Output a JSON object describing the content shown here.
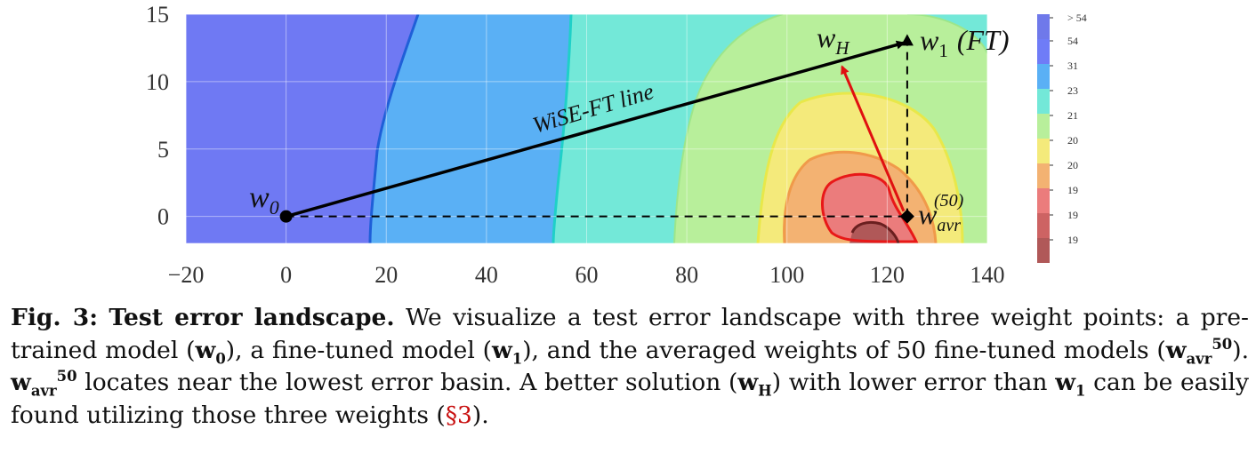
{
  "chart_data": {
    "type": "heatmap",
    "title": "",
    "xlabel": "",
    "ylabel": "",
    "xlim": [
      -20,
      140
    ],
    "ylim": [
      -2,
      15
    ],
    "xticks": [
      "−20",
      "0",
      "20",
      "40",
      "60",
      "80",
      "100",
      "120",
      "140"
    ],
    "yticks": [
      "0",
      "5",
      "10",
      "15"
    ],
    "grid": true,
    "colorbar": {
      "labels": [
        "> 54",
        "54",
        "31",
        "23",
        "21",
        "20",
        "20",
        "19",
        "19",
        "19"
      ],
      "colors": [
        "#6f79ea",
        "#6f7cf7",
        "#5ab0f5",
        "#73e8d8",
        "#b8ef9b",
        "#f4ea7b",
        "#f3b272",
        "#eb7c7c",
        "#cd6363",
        "#b05858"
      ]
    },
    "points": [
      {
        "label": "w0",
        "x": 0,
        "y": 0
      },
      {
        "label": "w1 (FT)",
        "x": 124,
        "y": 13
      },
      {
        "label": "w_avr^(50)",
        "x": 124,
        "y": 0
      },
      {
        "label": "w_H",
        "x": 111,
        "y": 11.5
      }
    ],
    "annotations": {
      "wise_line": "WiSE-FT line",
      "w0": "w",
      "w0_sub": "0",
      "w1": "w",
      "w1_sub": "1",
      "ft": "(FT)",
      "wh": "w",
      "wh_sub": "H",
      "wavr": "w",
      "wavr_sub": "avr",
      "wavr_sup": "(50)"
    }
  },
  "caption": {
    "label": "Fig. 3:",
    "heading": "Test error landscape.",
    "s1": "We visualize a test error landscape with three weight points: a pre-trained model (",
    "w0": "w",
    "w0_sub": "0",
    "s2": "), a fine-tuned model (",
    "w1": "w",
    "w1_sub": "1",
    "s3": "), and the averaged weights of 50 fine-tuned models (",
    "wavr": "w",
    "wavr_sub": "avr",
    "wavr_sup": "50",
    "s4": "). ",
    "s5": " locates near the lowest error basin. A better solution (",
    "wh": "w",
    "wh_sub": "H",
    "s6": ") with lower error than ",
    "s7": " can be easily found utilizing those three weights (",
    "ref": "§3",
    "s8": ")."
  }
}
